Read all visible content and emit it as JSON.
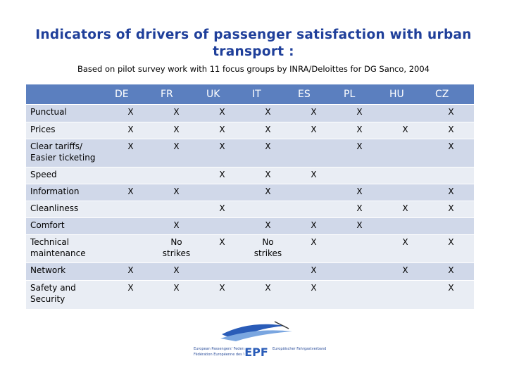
{
  "header": {
    "title": "Indicators of drivers of passenger satisfaction with urban transport :",
    "subtitle": "Based on pilot survey work with 11 focus groups by INRA/Deloittes for DG Sanco, 2004"
  },
  "table": {
    "columns": [
      "DE",
      "FR",
      "UK",
      "IT",
      "ES",
      "PL",
      "HU",
      "CZ"
    ],
    "rows": [
      {
        "label": "Punctual",
        "cells": [
          "X",
          "X",
          "X",
          "X",
          "X",
          "X",
          null,
          "X"
        ]
      },
      {
        "label": "Prices",
        "cells": [
          "X",
          "X",
          "X",
          "X",
          "X",
          "X",
          "X",
          "X"
        ]
      },
      {
        "label": "Clear tariffs/ Easier ticketing",
        "cells": [
          "X",
          "X",
          "X",
          "X",
          null,
          "X",
          null,
          "X"
        ]
      },
      {
        "label": "Speed",
        "cells": [
          null,
          null,
          "X",
          "X",
          "X",
          null,
          null,
          null
        ]
      },
      {
        "label": "Information",
        "cells": [
          "X",
          "X",
          null,
          "X",
          null,
          "X",
          null,
          "X"
        ]
      },
      {
        "label": "Cleanliness",
        "cells": [
          null,
          null,
          "X",
          null,
          null,
          "X",
          "X",
          "X"
        ]
      },
      {
        "label": "Comfort",
        "cells": [
          null,
          "X",
          null,
          "X",
          "X",
          "X",
          null,
          null
        ]
      },
      {
        "label": "Technical maintenance",
        "cells": [
          null,
          "No strikes",
          "X",
          "No strikes",
          "X",
          null,
          "X",
          "X"
        ]
      },
      {
        "label": "Network",
        "cells": [
          "X",
          "X",
          null,
          null,
          "X",
          null,
          "X",
          "X"
        ]
      },
      {
        "label": "Safety and Security",
        "cells": [
          "X",
          "X",
          "X",
          "X",
          "X",
          null,
          null,
          "X"
        ]
      }
    ]
  },
  "logo": {
    "acronym": "EPF",
    "name_en": "European Passengers' Federation",
    "name_fr": "Fédération Européenne des Voyageurs",
    "name_de": "Europäischer Fahrgastverband"
  }
}
